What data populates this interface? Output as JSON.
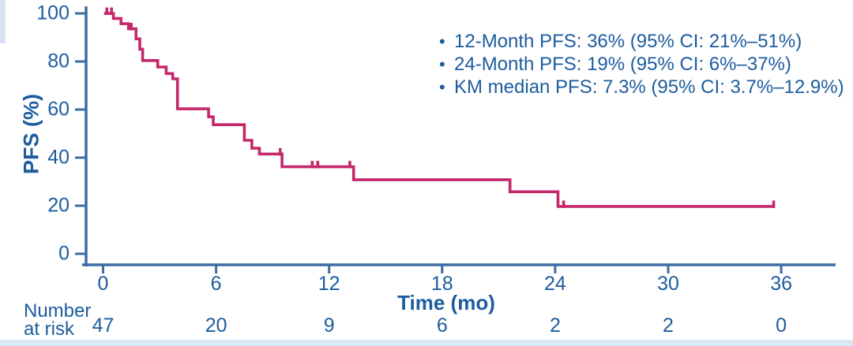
{
  "colors": {
    "curve": "#c5286a",
    "axis": "#3d6ca3",
    "text": "#1d5c9e",
    "footer_strip": "#d9e8f5"
  },
  "bullet": "•",
  "number_at_risk": {
    "label_line1": "Number",
    "label_line2": "at risk",
    "values": [
      "47",
      "20",
      "9",
      "6",
      "2",
      "2",
      "0"
    ]
  },
  "chart_data": {
    "type": "line",
    "subtype": "kaplan-meier-step",
    "title": "",
    "xlabel": "Time (mo)",
    "ylabel": "PFS (%)",
    "xlim": [
      0,
      36
    ],
    "ylim": [
      0,
      100
    ],
    "grid": false,
    "legend_position": "none",
    "x_ticks": [
      0,
      6,
      12,
      18,
      24,
      30,
      36
    ],
    "y_ticks": [
      0,
      20,
      40,
      60,
      80,
      100
    ],
    "stats": [
      "12-Month PFS: 36% (95% CI: 21%–51%)",
      "24-Month PFS: 19% (95% CI: 6%–37%)",
      "KM median PFS: 7.3% (95% CI: 3.7%–12.9%)"
    ],
    "series": [
      {
        "name": "PFS",
        "color": "#c5286a",
        "steps": [
          [
            0.05,
            100
          ],
          [
            0.55,
            97.9
          ],
          [
            0.95,
            95.7
          ],
          [
            1.35,
            93.6
          ],
          [
            1.75,
            89.4
          ],
          [
            1.95,
            85.1
          ],
          [
            2.1,
            80.4
          ],
          [
            2.9,
            77.7
          ],
          [
            3.35,
            75.0
          ],
          [
            3.7,
            72.8
          ],
          [
            3.95,
            60.3
          ],
          [
            5.6,
            57.0
          ],
          [
            5.85,
            53.7
          ],
          [
            7.5,
            47.2
          ],
          [
            7.9,
            43.9
          ],
          [
            8.3,
            41.5
          ],
          [
            9.5,
            36.2
          ],
          [
            13.3,
            30.8
          ],
          [
            21.6,
            25.8
          ],
          [
            24.15,
            19.7
          ],
          [
            35.65,
            19.7
          ]
        ],
        "censors": [
          [
            0.2,
            100
          ],
          [
            0.45,
            100
          ],
          [
            1.5,
            93.6
          ],
          [
            9.4,
            41.5
          ],
          [
            11.1,
            36.2
          ],
          [
            11.4,
            36.2
          ],
          [
            13.1,
            36.2
          ],
          [
            24.45,
            19.7
          ],
          [
            35.6,
            19.7
          ]
        ]
      }
    ]
  }
}
